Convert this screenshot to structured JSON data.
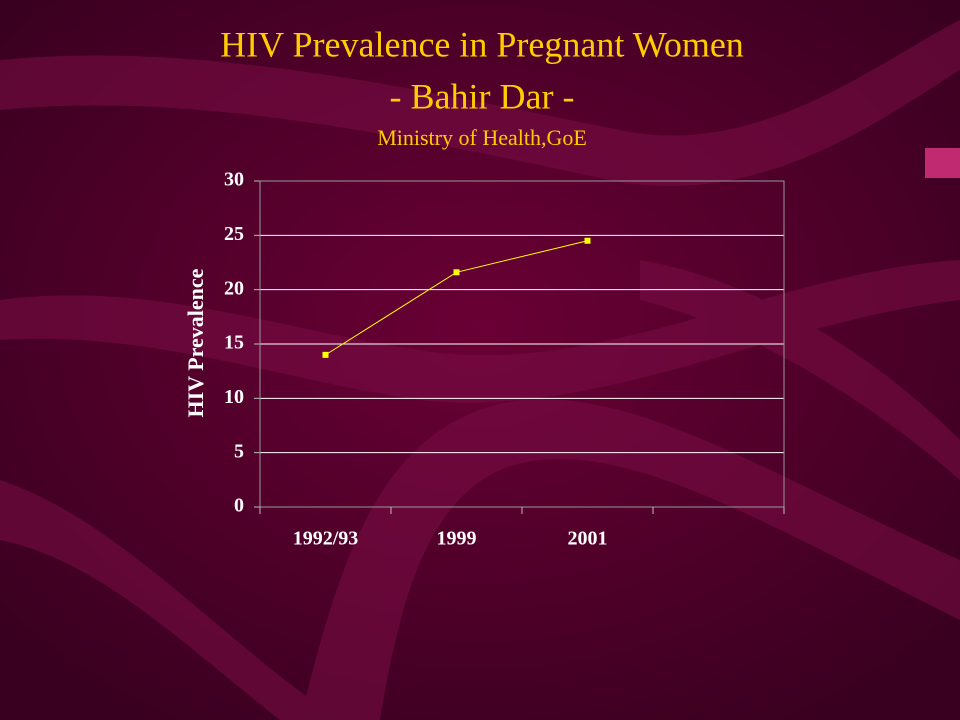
{
  "chart_data": {
    "type": "line",
    "title": [
      "HIV Prevalence in Pregnant Women",
      "- Bahir Dar -"
    ],
    "subtitle": "Ministry of Health,GoE",
    "ylabel": "HIV Prevalence",
    "categories": [
      "1992/93",
      "1999",
      "2001",
      null
    ],
    "series": [
      {
        "name": "HIV Prevalence",
        "color": "#ffff00",
        "values": [
          14,
          21.6,
          24.5,
          null
        ]
      }
    ],
    "ylim": [
      0,
      30
    ],
    "yticks": [
      0,
      5,
      10,
      15,
      20,
      25,
      30
    ],
    "grid": true
  }
}
